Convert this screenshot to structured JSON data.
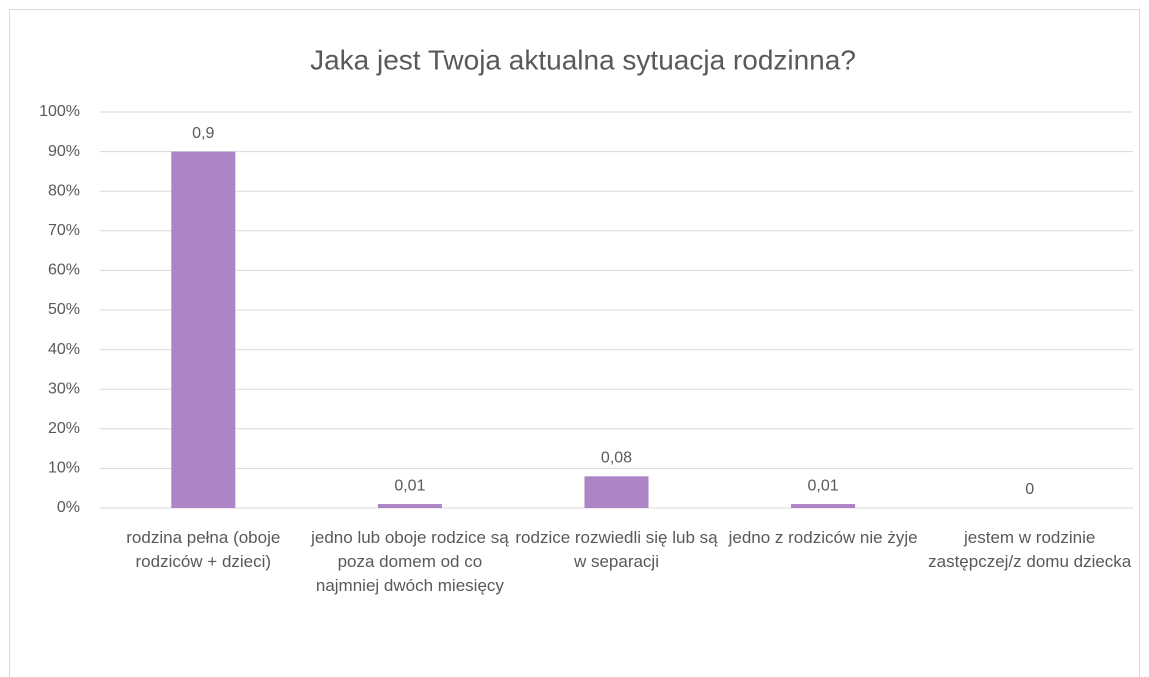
{
  "chart_data": {
    "type": "bar",
    "title": "Jaka jest Twoja aktualna sytuacja rodzinna?",
    "categories": [
      "rodzina pełna (oboje rodziców + dzieci)",
      "jedno lub oboje rodzice są poza domem od co najmniej dwóch miesięcy",
      "rodzice rozwiedli się lub są w separacji",
      "jedno z rodziców nie żyje",
      "jestem w rodzinie zastępczej/z domu dziecka"
    ],
    "values": [
      90,
      1,
      8,
      1,
      0
    ],
    "value_labels": [
      "0,9",
      "0,01",
      "0,08",
      "0,01",
      "0"
    ],
    "color": "#ad84c6",
    "ylim": [
      0,
      100
    ],
    "yticks": [
      {
        "value": 0,
        "label": "0%"
      },
      {
        "value": 10,
        "label": "10%"
      },
      {
        "value": 20,
        "label": "20%"
      },
      {
        "value": 30,
        "label": "30%"
      },
      {
        "value": 40,
        "label": "40%"
      },
      {
        "value": 50,
        "label": "50%"
      },
      {
        "value": 60,
        "label": "60%"
      },
      {
        "value": 70,
        "label": "70%"
      },
      {
        "value": 80,
        "label": "80%"
      },
      {
        "value": 90,
        "label": "90%"
      },
      {
        "value": 100,
        "label": "100%"
      }
    ],
    "grid": true
  }
}
